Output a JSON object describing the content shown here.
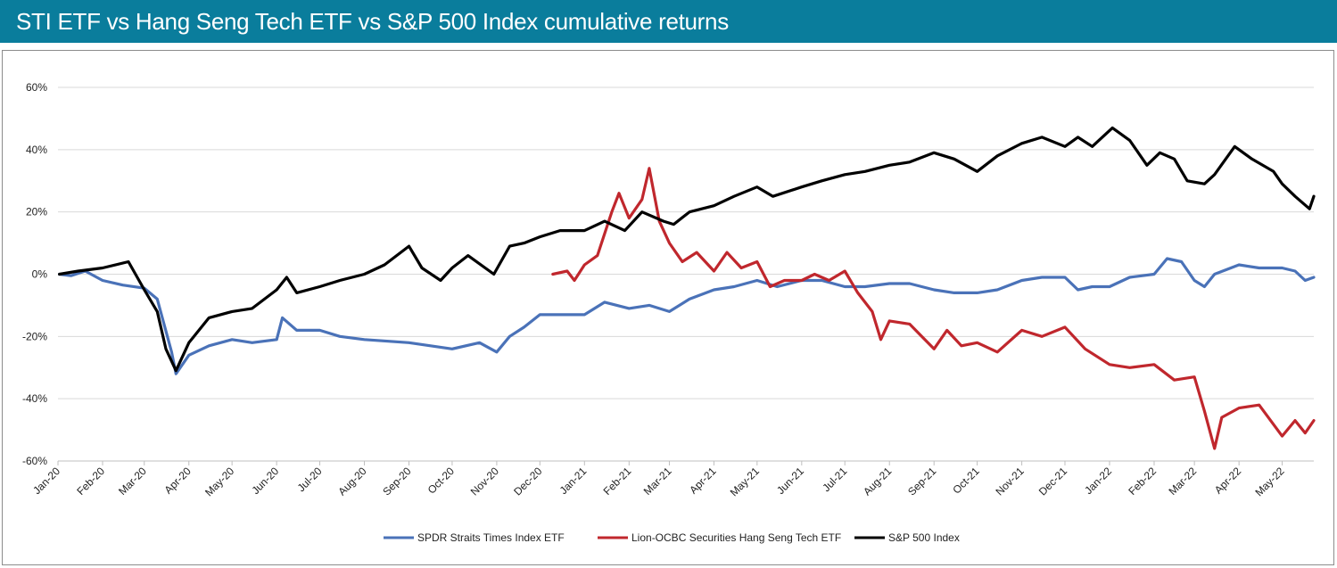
{
  "header": {
    "title": "STI ETF vs Hang Seng Tech ETF vs S&P 500 Index cumulative returns"
  },
  "colors": {
    "header_bg": "#0a7d9c",
    "sti": "#4a72b8",
    "hstech": "#c0272d",
    "sp500": "#000000",
    "grid": "#d9d9d9"
  },
  "chart_data": {
    "type": "line",
    "title": "STI ETF vs Hang Seng Tech ETF vs S&P 500 Index cumulative returns",
    "xlabel": "",
    "ylabel": "",
    "xlim": [
      "2020-01-01",
      "2022-05-23"
    ],
    "ylim": [
      -0.6,
      0.6
    ],
    "y_ticks": [
      0.6,
      0.4,
      0.2,
      0.0,
      -0.2,
      -0.4,
      -0.6
    ],
    "y_tick_labels": [
      "60%",
      "40%",
      "20%",
      "0%",
      "-20%",
      "-40%",
      "-60%"
    ],
    "x_ticks": [
      "2020-01-01",
      "2020-02-01",
      "2020-03-01",
      "2020-04-01",
      "2020-05-01",
      "2020-06-01",
      "2020-07-01",
      "2020-08-01",
      "2020-09-01",
      "2020-10-01",
      "2020-11-01",
      "2020-12-01",
      "2021-01-01",
      "2021-02-01",
      "2021-03-01",
      "2021-04-01",
      "2021-05-01",
      "2021-06-01",
      "2021-07-01",
      "2021-08-01",
      "2021-09-01",
      "2021-10-01",
      "2021-11-01",
      "2021-12-01",
      "2022-01-01",
      "2022-02-01",
      "2022-03-01",
      "2022-04-01",
      "2022-05-01"
    ],
    "x_tick_labels": [
      "Jan-20",
      "Feb-20",
      "Mar-20",
      "Apr-20",
      "May-20",
      "Jun-20",
      "Jul-20",
      "Aug-20",
      "Sep-20",
      "Oct-20",
      "Nov-20",
      "Dec-20",
      "Jan-21",
      "Feb-21",
      "Mar-21",
      "Apr-21",
      "May-21",
      "Jun-21",
      "Jul-21",
      "Aug-21",
      "Sep-21",
      "Oct-21",
      "Nov-21",
      "Dec-21",
      "Jan-22",
      "Feb-22",
      "Mar-22",
      "Apr-22",
      "May-22"
    ],
    "grid": "horizontal",
    "legend_position": "bottom",
    "series": [
      {
        "name": "SPDR Straits Times Index ETF",
        "color": "#4a72b8",
        "points": [
          [
            "2020-01-02",
            0.0
          ],
          [
            "2020-01-10",
            -0.005
          ],
          [
            "2020-01-20",
            0.01
          ],
          [
            "2020-02-01",
            -0.02
          ],
          [
            "2020-02-15",
            -0.035
          ],
          [
            "2020-03-01",
            -0.045
          ],
          [
            "2020-03-10",
            -0.08
          ],
          [
            "2020-03-20",
            -0.25
          ],
          [
            "2020-03-23",
            -0.32
          ],
          [
            "2020-04-01",
            -0.26
          ],
          [
            "2020-04-15",
            -0.23
          ],
          [
            "2020-05-01",
            -0.21
          ],
          [
            "2020-05-15",
            -0.22
          ],
          [
            "2020-06-01",
            -0.21
          ],
          [
            "2020-06-05",
            -0.14
          ],
          [
            "2020-06-15",
            -0.18
          ],
          [
            "2020-07-01",
            -0.18
          ],
          [
            "2020-07-15",
            -0.2
          ],
          [
            "2020-08-01",
            -0.21
          ],
          [
            "2020-09-01",
            -0.22
          ],
          [
            "2020-10-01",
            -0.24
          ],
          [
            "2020-10-20",
            -0.22
          ],
          [
            "2020-11-01",
            -0.25
          ],
          [
            "2020-11-10",
            -0.2
          ],
          [
            "2020-11-20",
            -0.17
          ],
          [
            "2020-12-01",
            -0.13
          ],
          [
            "2020-12-15",
            -0.13
          ],
          [
            "2021-01-01",
            -0.13
          ],
          [
            "2021-01-15",
            -0.09
          ],
          [
            "2021-02-01",
            -0.11
          ],
          [
            "2021-02-15",
            -0.1
          ],
          [
            "2021-03-01",
            -0.12
          ],
          [
            "2021-03-15",
            -0.08
          ],
          [
            "2021-04-01",
            -0.05
          ],
          [
            "2021-04-15",
            -0.04
          ],
          [
            "2021-05-01",
            -0.02
          ],
          [
            "2021-05-15",
            -0.04
          ],
          [
            "2021-06-01",
            -0.02
          ],
          [
            "2021-06-15",
            -0.02
          ],
          [
            "2021-07-01",
            -0.04
          ],
          [
            "2021-07-15",
            -0.04
          ],
          [
            "2021-08-01",
            -0.03
          ],
          [
            "2021-08-15",
            -0.03
          ],
          [
            "2021-09-01",
            -0.05
          ],
          [
            "2021-09-15",
            -0.06
          ],
          [
            "2021-10-01",
            -0.06
          ],
          [
            "2021-10-15",
            -0.05
          ],
          [
            "2021-11-01",
            -0.02
          ],
          [
            "2021-11-15",
            -0.01
          ],
          [
            "2021-12-01",
            -0.01
          ],
          [
            "2021-12-10",
            -0.05
          ],
          [
            "2021-12-20",
            -0.04
          ],
          [
            "2022-01-01",
            -0.04
          ],
          [
            "2022-01-15",
            -0.01
          ],
          [
            "2022-02-01",
            0.0
          ],
          [
            "2022-02-10",
            0.05
          ],
          [
            "2022-02-20",
            0.04
          ],
          [
            "2022-03-01",
            -0.02
          ],
          [
            "2022-03-08",
            -0.04
          ],
          [
            "2022-03-15",
            0.0
          ],
          [
            "2022-04-01",
            0.03
          ],
          [
            "2022-04-15",
            0.02
          ],
          [
            "2022-05-01",
            0.02
          ],
          [
            "2022-05-10",
            0.01
          ],
          [
            "2022-05-17",
            -0.02
          ],
          [
            "2022-05-23",
            -0.01
          ]
        ]
      },
      {
        "name": "Lion-OCBC Securities Hang Seng Tech ETF",
        "color": "#c0272d",
        "points": [
          [
            "2020-12-10",
            0.0
          ],
          [
            "2020-12-20",
            0.01
          ],
          [
            "2020-12-25",
            -0.02
          ],
          [
            "2021-01-01",
            0.03
          ],
          [
            "2021-01-10",
            0.06
          ],
          [
            "2021-01-20",
            0.2
          ],
          [
            "2021-01-25",
            0.26
          ],
          [
            "2021-02-01",
            0.18
          ],
          [
            "2021-02-10",
            0.24
          ],
          [
            "2021-02-15",
            0.34
          ],
          [
            "2021-02-22",
            0.17
          ],
          [
            "2021-03-01",
            0.1
          ],
          [
            "2021-03-10",
            0.04
          ],
          [
            "2021-03-20",
            0.07
          ],
          [
            "2021-04-01",
            0.01
          ],
          [
            "2021-04-10",
            0.07
          ],
          [
            "2021-04-20",
            0.02
          ],
          [
            "2021-05-01",
            0.04
          ],
          [
            "2021-05-10",
            -0.04
          ],
          [
            "2021-05-20",
            -0.02
          ],
          [
            "2021-06-01",
            -0.02
          ],
          [
            "2021-06-10",
            0.0
          ],
          [
            "2021-06-20",
            -0.02
          ],
          [
            "2021-07-01",
            0.01
          ],
          [
            "2021-07-10",
            -0.06
          ],
          [
            "2021-07-20",
            -0.12
          ],
          [
            "2021-07-26",
            -0.21
          ],
          [
            "2021-08-01",
            -0.15
          ],
          [
            "2021-08-15",
            -0.16
          ],
          [
            "2021-09-01",
            -0.24
          ],
          [
            "2021-09-10",
            -0.18
          ],
          [
            "2021-09-20",
            -0.23
          ],
          [
            "2021-10-01",
            -0.22
          ],
          [
            "2021-10-15",
            -0.25
          ],
          [
            "2021-11-01",
            -0.18
          ],
          [
            "2021-11-15",
            -0.2
          ],
          [
            "2021-12-01",
            -0.17
          ],
          [
            "2021-12-15",
            -0.24
          ],
          [
            "2022-01-01",
            -0.29
          ],
          [
            "2022-01-15",
            -0.3
          ],
          [
            "2022-02-01",
            -0.29
          ],
          [
            "2022-02-15",
            -0.34
          ],
          [
            "2022-03-01",
            -0.33
          ],
          [
            "2022-03-08",
            -0.44
          ],
          [
            "2022-03-15",
            -0.56
          ],
          [
            "2022-03-20",
            -0.46
          ],
          [
            "2022-04-01",
            -0.43
          ],
          [
            "2022-04-15",
            -0.42
          ],
          [
            "2022-05-01",
            -0.52
          ],
          [
            "2022-05-10",
            -0.47
          ],
          [
            "2022-05-17",
            -0.51
          ],
          [
            "2022-05-23",
            -0.47
          ]
        ]
      },
      {
        "name": "S&P 500 Index",
        "color": "#000000",
        "points": [
          [
            "2020-01-02",
            0.0
          ],
          [
            "2020-01-15",
            0.01
          ],
          [
            "2020-02-01",
            0.02
          ],
          [
            "2020-02-19",
            0.04
          ],
          [
            "2020-03-01",
            -0.05
          ],
          [
            "2020-03-10",
            -0.12
          ],
          [
            "2020-03-16",
            -0.24
          ],
          [
            "2020-03-23",
            -0.31
          ],
          [
            "2020-04-01",
            -0.22
          ],
          [
            "2020-04-15",
            -0.14
          ],
          [
            "2020-05-01",
            -0.12
          ],
          [
            "2020-05-15",
            -0.11
          ],
          [
            "2020-06-01",
            -0.05
          ],
          [
            "2020-06-08",
            -0.01
          ],
          [
            "2020-06-15",
            -0.06
          ],
          [
            "2020-07-01",
            -0.04
          ],
          [
            "2020-07-15",
            -0.02
          ],
          [
            "2020-08-01",
            0.0
          ],
          [
            "2020-08-15",
            0.03
          ],
          [
            "2020-09-01",
            0.09
          ],
          [
            "2020-09-10",
            0.02
          ],
          [
            "2020-09-23",
            -0.02
          ],
          [
            "2020-10-01",
            0.02
          ],
          [
            "2020-10-12",
            0.06
          ],
          [
            "2020-10-30",
            0.0
          ],
          [
            "2020-11-10",
            0.09
          ],
          [
            "2020-11-20",
            0.1
          ],
          [
            "2020-12-01",
            0.12
          ],
          [
            "2020-12-15",
            0.14
          ],
          [
            "2021-01-01",
            0.14
          ],
          [
            "2021-01-15",
            0.17
          ],
          [
            "2021-01-29",
            0.14
          ],
          [
            "2021-02-10",
            0.2
          ],
          [
            "2021-02-25",
            0.17
          ],
          [
            "2021-03-04",
            0.16
          ],
          [
            "2021-03-15",
            0.2
          ],
          [
            "2021-04-01",
            0.22
          ],
          [
            "2021-04-15",
            0.25
          ],
          [
            "2021-05-01",
            0.28
          ],
          [
            "2021-05-12",
            0.25
          ],
          [
            "2021-06-01",
            0.28
          ],
          [
            "2021-06-15",
            0.3
          ],
          [
            "2021-07-01",
            0.32
          ],
          [
            "2021-07-15",
            0.33
          ],
          [
            "2021-08-01",
            0.35
          ],
          [
            "2021-08-15",
            0.36
          ],
          [
            "2021-09-01",
            0.39
          ],
          [
            "2021-09-15",
            0.37
          ],
          [
            "2021-10-01",
            0.33
          ],
          [
            "2021-10-15",
            0.38
          ],
          [
            "2021-11-01",
            0.42
          ],
          [
            "2021-11-15",
            0.44
          ],
          [
            "2021-12-01",
            0.41
          ],
          [
            "2021-12-10",
            0.44
          ],
          [
            "2021-12-20",
            0.41
          ],
          [
            "2022-01-03",
            0.47
          ],
          [
            "2022-01-15",
            0.43
          ],
          [
            "2022-01-27",
            0.35
          ],
          [
            "2022-02-05",
            0.39
          ],
          [
            "2022-02-15",
            0.37
          ],
          [
            "2022-02-24",
            0.3
          ],
          [
            "2022-03-08",
            0.29
          ],
          [
            "2022-03-15",
            0.32
          ],
          [
            "2022-03-29",
            0.41
          ],
          [
            "2022-04-10",
            0.37
          ],
          [
            "2022-04-25",
            0.33
          ],
          [
            "2022-05-01",
            0.29
          ],
          [
            "2022-05-10",
            0.25
          ],
          [
            "2022-05-20",
            0.21
          ],
          [
            "2022-05-23",
            0.25
          ]
        ]
      }
    ]
  }
}
